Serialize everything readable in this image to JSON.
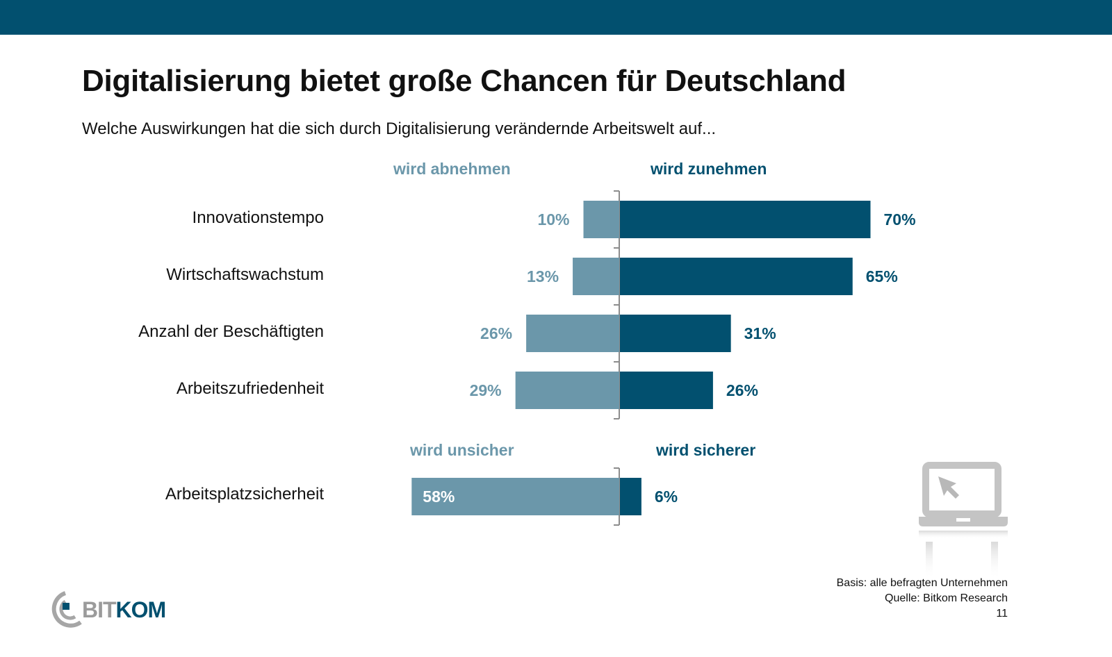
{
  "header": {
    "title": "Digitalisierung bietet große Chancen für Deutschland",
    "subtitle": "Welche Auswirkungen hat die sich durch Digitalisierung verändernde Arbeitswelt auf..."
  },
  "colors": {
    "brand": "#02506f",
    "negative": "#6b97aa",
    "positive": "#02506f",
    "axis": "#8c8c8c"
  },
  "chart_data": [
    {
      "type": "bar",
      "orientation": "horizontal-diverging",
      "legend_negative": "wird abnehmen",
      "legend_positive": "wird zunehmen",
      "categories": [
        "Innovationstempo",
        "Wirtschaftswachstum",
        "Anzahl der Beschäftigten",
        "Arbeitszufriedenheit"
      ],
      "series": [
        {
          "name": "wird abnehmen",
          "values": [
            10,
            13,
            26,
            29
          ],
          "labels": [
            "10%",
            "13%",
            "26%",
            "29%"
          ]
        },
        {
          "name": "wird zunehmen",
          "values": [
            70,
            65,
            31,
            26
          ],
          "labels": [
            "70%",
            "65%",
            "31%",
            "26%"
          ]
        }
      ],
      "unit": "%"
    },
    {
      "type": "bar",
      "orientation": "horizontal-diverging",
      "legend_negative": "wird unsicher",
      "legend_positive": "wird sicherer",
      "categories": [
        "Arbeitsplatzsicherheit"
      ],
      "series": [
        {
          "name": "wird unsicher",
          "values": [
            58
          ],
          "labels": [
            "58%"
          ]
        },
        {
          "name": "wird sicherer",
          "values": [
            6
          ],
          "labels": [
            "6%"
          ]
        }
      ],
      "unit": "%"
    }
  ],
  "footer": {
    "basis": "Basis: alle befragten Unternehmen",
    "source": "Quelle: Bitkom Research",
    "page_number": "11",
    "logo_bit": "BIT",
    "logo_kom": "KOM"
  },
  "decor": {
    "illustration": "laptop-cursor-icon"
  }
}
